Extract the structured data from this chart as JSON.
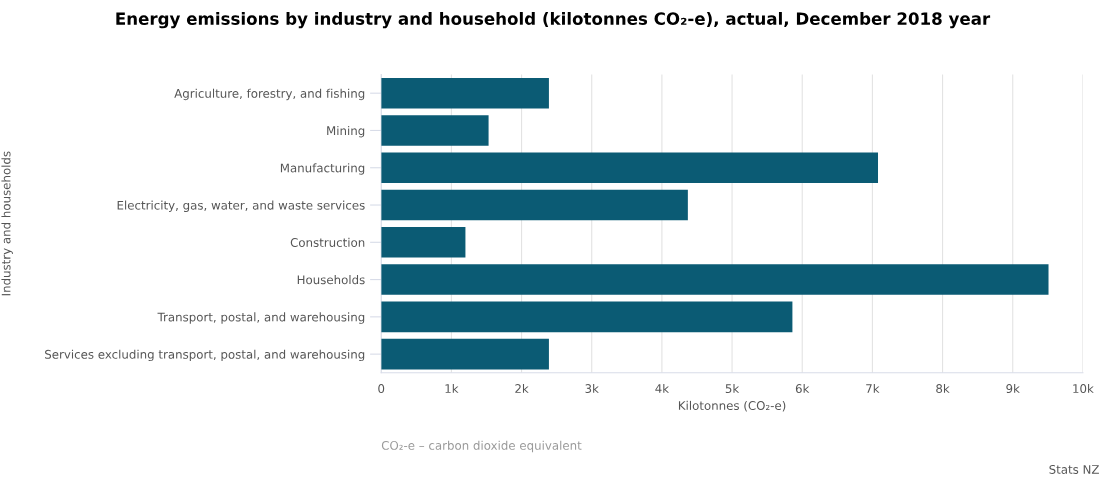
{
  "chart_data": {
    "type": "bar",
    "orientation": "horizontal",
    "title": "Energy emissions by industry and household (kilotonnes CO₂-e), actual, December 2018 year",
    "xlabel": "Kilotonnes (CO₂-e)",
    "ylabel": "Industry and households",
    "categories": [
      "Agriculture, forestry, and fishing",
      "Mining",
      "Manufacturing",
      "Electricity, gas, water, and waste services",
      "Construction",
      "Households",
      "Transport, postal, and warehousing",
      "Services excluding transport, postal, and warehousing"
    ],
    "values": [
      2390,
      1530,
      7080,
      4370,
      1200,
      9510,
      5860,
      2390
    ],
    "color": "#0b5b74",
    "xlim": [
      0,
      10000
    ],
    "xticks": [
      0,
      {
        "value": 1000,
        "label": "1k"
      },
      {
        "value": 2000,
        "label": "2k"
      },
      {
        "value": 3000,
        "label": "3k"
      },
      {
        "value": 4000,
        "label": "4k"
      },
      {
        "value": 5000,
        "label": "5k"
      },
      {
        "value": 6000,
        "label": "6k"
      },
      {
        "value": 7000,
        "label": "7k"
      },
      {
        "value": 8000,
        "label": "8k"
      },
      {
        "value": 9000,
        "label": "9k"
      },
      {
        "value": 10000,
        "label": "10k"
      }
    ],
    "grid": "x",
    "annotations": [
      "CO₂-e – carbon dioxide equivalent",
      "Stats NZ"
    ]
  }
}
